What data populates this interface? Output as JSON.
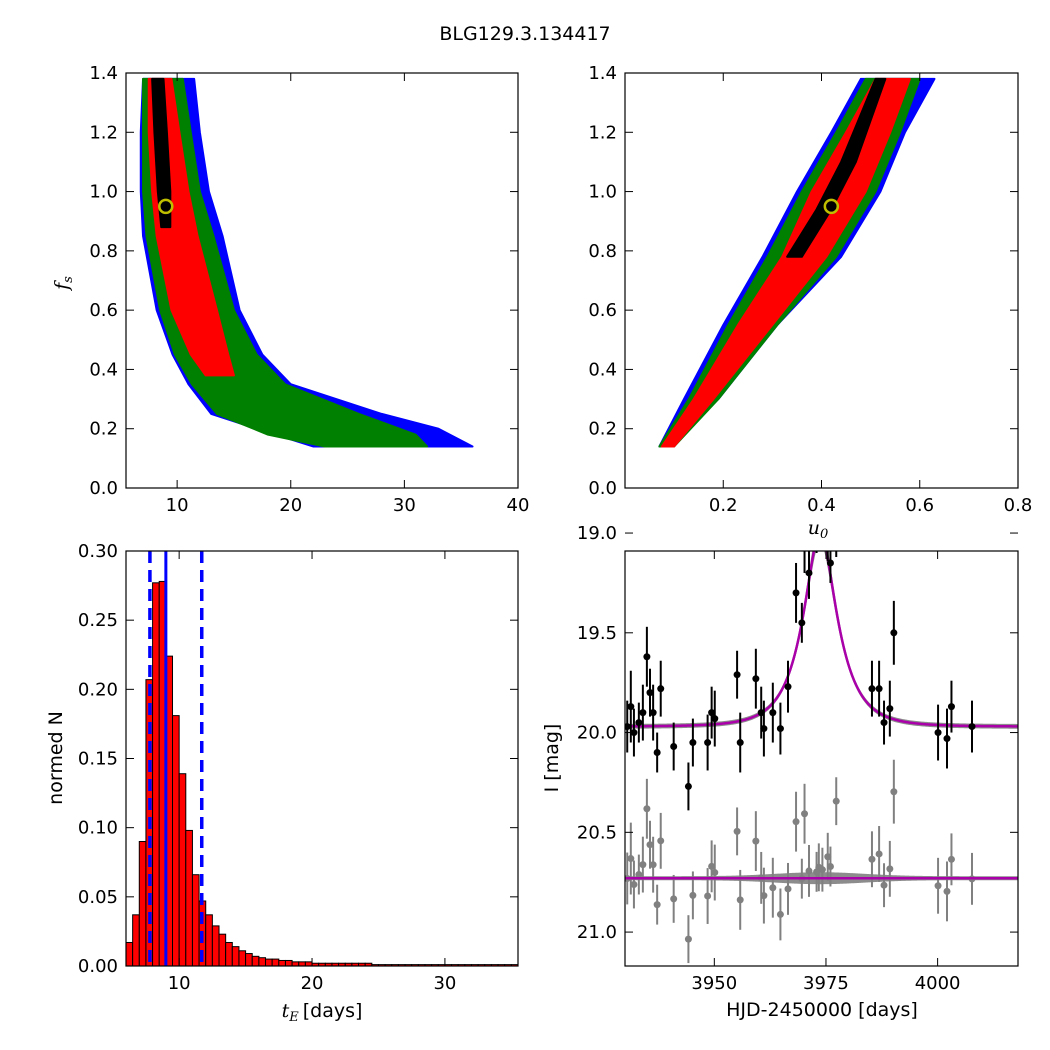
{
  "figure": {
    "title": "BLG129.3.134417"
  },
  "colors": {
    "chi1": "#ff0000",
    "chi2": "#008000",
    "chi3": "#0000ff",
    "best": "#000000",
    "marker_edge": "#bfbf00",
    "hist_bar": "#ff0000",
    "hist_line": "#0000ff",
    "model": "#aa00aa",
    "band": "#808080",
    "data_main": "#000000",
    "data_resid": "#808080"
  },
  "chart_data": [
    {
      "id": "fs_vs_tE",
      "type": "heatmap",
      "xlabel": "",
      "ylabel": "f_s",
      "xlim": [
        5.5,
        40
      ],
      "ylim": [
        0,
        1.4
      ],
      "xticks": [
        "10",
        "20",
        "30",
        "40"
      ],
      "yticks": [
        "0.0",
        "0.2",
        "0.4",
        "0.6",
        "0.8",
        "1.0",
        "1.2",
        "1.4"
      ],
      "marker": {
        "x": 9.0,
        "y": 0.95
      },
      "regions": {
        "blue": [
          [
            7.0,
            1.38,
            11.5
          ],
          [
            6.8,
            1.2,
            12.0
          ],
          [
            6.8,
            1.0,
            12.8
          ],
          [
            7.0,
            0.85,
            14.0
          ],
          [
            8.2,
            0.6,
            15.5
          ],
          [
            9.6,
            0.45,
            17.5
          ],
          [
            11.0,
            0.35,
            20.0
          ],
          [
            13.0,
            0.25,
            28.0
          ],
          [
            17.0,
            0.2,
            33.0
          ],
          [
            22.0,
            0.14,
            36.0
          ]
        ],
        "green": [
          [
            7.0,
            1.38,
            10.5
          ],
          [
            7.0,
            1.2,
            11.2
          ],
          [
            7.0,
            1.0,
            12.0
          ],
          [
            7.3,
            0.85,
            13.2
          ],
          [
            8.5,
            0.6,
            15.0
          ],
          [
            9.8,
            0.45,
            17.0
          ],
          [
            11.3,
            0.35,
            19.5
          ],
          [
            13.5,
            0.25,
            26.0
          ],
          [
            18.0,
            0.18,
            31.0
          ],
          [
            23.0,
            0.14,
            32.0
          ]
        ],
        "red": [
          [
            7.5,
            1.38,
            9.5
          ],
          [
            7.5,
            1.2,
            10.2
          ],
          [
            7.8,
            1.0,
            11.0
          ],
          [
            8.2,
            0.85,
            11.8
          ],
          [
            9.5,
            0.6,
            13.5
          ],
          [
            11.2,
            0.45,
            14.5
          ],
          [
            12.5,
            0.38,
            15.0
          ]
        ],
        "black": [
          [
            7.8,
            1.38,
            8.8
          ],
          [
            8.0,
            1.2,
            9.1
          ],
          [
            8.3,
            1.0,
            9.4
          ],
          [
            8.6,
            0.88,
            9.4
          ]
        ]
      }
    },
    {
      "id": "fs_vs_u0",
      "type": "heatmap",
      "xlabel": "u_0",
      "ylabel": "",
      "xlim": [
        0,
        0.8
      ],
      "ylim": [
        0,
        1.4
      ],
      "xticks": [
        "0.2",
        "0.4",
        "0.6",
        "0.8"
      ],
      "yticks": [
        "0.0",
        "0.2",
        "0.4",
        "0.6",
        "0.8",
        "1.0",
        "1.2",
        "1.4"
      ],
      "marker": {
        "x": 0.42,
        "y": 0.95
      },
      "regions": {
        "blue": [
          [
            0.07,
            0.14,
            0.09
          ],
          [
            0.12,
            0.3,
            0.19
          ],
          [
            0.2,
            0.55,
            0.31
          ],
          [
            0.28,
            0.78,
            0.44
          ],
          [
            0.35,
            1.0,
            0.52
          ],
          [
            0.42,
            1.2,
            0.57
          ],
          [
            0.48,
            1.38,
            0.63
          ]
        ],
        "green": [
          [
            0.07,
            0.14,
            0.1
          ],
          [
            0.13,
            0.3,
            0.19
          ],
          [
            0.21,
            0.55,
            0.31
          ],
          [
            0.29,
            0.78,
            0.43
          ],
          [
            0.36,
            1.0,
            0.51
          ],
          [
            0.43,
            1.2,
            0.56
          ],
          [
            0.49,
            1.38,
            0.6
          ]
        ],
        "red": [
          [
            0.075,
            0.14,
            0.1
          ],
          [
            0.14,
            0.3,
            0.18
          ],
          [
            0.23,
            0.55,
            0.3
          ],
          [
            0.32,
            0.78,
            0.41
          ],
          [
            0.38,
            1.0,
            0.49
          ],
          [
            0.45,
            1.2,
            0.54
          ],
          [
            0.51,
            1.38,
            0.58
          ]
        ],
        "black": [
          [
            0.33,
            0.78,
            0.36
          ],
          [
            0.39,
            0.94,
            0.42
          ],
          [
            0.44,
            1.1,
            0.47
          ],
          [
            0.51,
            1.38,
            0.53
          ]
        ]
      }
    },
    {
      "id": "tE_histogram",
      "type": "bar",
      "xlabel": "t_E [days]",
      "ylabel": "normed N",
      "xlim": [
        6,
        35.5
      ],
      "ylim": [
        0,
        0.3
      ],
      "xticks": [
        "10",
        "20",
        "30"
      ],
      "yticks": [
        "0.00",
        "0.05",
        "0.10",
        "0.15",
        "0.20",
        "0.25",
        "0.30"
      ],
      "bin_start": 6.0,
      "bin_width": 0.5,
      "values": [
        0.017,
        0.037,
        0.09,
        0.207,
        0.277,
        0.278,
        0.224,
        0.181,
        0.139,
        0.098,
        0.066,
        0.047,
        0.037,
        0.029,
        0.023,
        0.017,
        0.014,
        0.011,
        0.009,
        0.007,
        0.006,
        0.005,
        0.005,
        0.004,
        0.004,
        0.003,
        0.003,
        0.003,
        0.002,
        0.002,
        0.002,
        0.002,
        0.002,
        0.002,
        0.002,
        0.002,
        0.002,
        0.001,
        0.001,
        0.001,
        0.001,
        0.001,
        0.001,
        0.001,
        0.001,
        0.001,
        0.001,
        0.001,
        0.001,
        0.001,
        0.001,
        0.001,
        0.001,
        0.001,
        0.001,
        0.001,
        0.001,
        0.001,
        0.001
      ],
      "median": 9.0,
      "lower": 7.8,
      "upper": 11.7
    },
    {
      "id": "lightcurve",
      "type": "scatter",
      "xlabel": "HJD-2450000 [days]",
      "ylabel": "I [mag]",
      "xlim": [
        3930,
        4018
      ],
      "ylim": [
        21.17,
        19.09
      ],
      "xticks": [
        "3950",
        "3975",
        "4000"
      ],
      "yticks": [
        "19.0",
        "19.5",
        "20.0",
        "20.5",
        "21.0"
      ],
      "model": {
        "baseline": 19.97,
        "peak": 19.0,
        "t0": 3973.7,
        "tE": 7.0,
        "u0": 0.43,
        "resid_offset": 20.73
      },
      "points": [
        [
          3930.5,
          19.97,
          0.13
        ],
        [
          3931.3,
          19.87,
          0.18
        ],
        [
          3932.0,
          20.0,
          0.12
        ],
        [
          3933.1,
          19.95,
          0.1
        ],
        [
          3934.0,
          19.9,
          0.14
        ],
        [
          3934.9,
          19.62,
          0.15
        ],
        [
          3935.6,
          19.8,
          0.12
        ],
        [
          3936.3,
          19.9,
          0.14
        ],
        [
          3937.2,
          20.1,
          0.1
        ],
        [
          3938.0,
          19.78,
          0.14
        ],
        [
          3940.9,
          20.07,
          0.12
        ],
        [
          3944.2,
          20.27,
          0.12
        ],
        [
          3945.2,
          20.05,
          0.12
        ],
        [
          3948.5,
          20.05,
          0.14
        ],
        [
          3949.4,
          19.9,
          0.13
        ],
        [
          3950.1,
          19.93,
          0.14
        ],
        [
          3955.1,
          19.71,
          0.12
        ],
        [
          3955.8,
          20.05,
          0.15
        ],
        [
          3959.3,
          19.73,
          0.15
        ],
        [
          3963.1,
          19.9,
          0.15
        ],
        [
          3961.1,
          19.98,
          0.14
        ],
        [
          3960.5,
          19.9,
          0.13
        ],
        [
          3964.8,
          19.98,
          0.13
        ],
        [
          3966.5,
          19.77,
          0.13
        ],
        [
          3968.3,
          19.3,
          0.15
        ],
        [
          3969.6,
          19.45,
          0.1
        ],
        [
          3970.2,
          19.05,
          0.15
        ],
        [
          3971.2,
          19.2,
          0.13
        ],
        [
          3972.9,
          19.0,
          0.1
        ],
        [
          3973.4,
          18.95,
          0.12
        ],
        [
          3974.2,
          18.97,
          0.11
        ],
        [
          3975.4,
          19.02,
          0.12
        ],
        [
          3976.0,
          19.15,
          0.1
        ],
        [
          3977.3,
          19.0,
          0.12
        ],
        [
          3985.3,
          19.78,
          0.14
        ],
        [
          3986.9,
          19.78,
          0.14
        ],
        [
          3988.0,
          19.95,
          0.11
        ],
        [
          3989.3,
          19.88,
          0.14
        ],
        [
          3990.2,
          19.5,
          0.16
        ],
        [
          4000.1,
          20.0,
          0.14
        ],
        [
          4002.1,
          20.03,
          0.15
        ],
        [
          4003.1,
          19.87,
          0.13
        ],
        [
          4007.7,
          19.97,
          0.13
        ]
      ]
    }
  ]
}
